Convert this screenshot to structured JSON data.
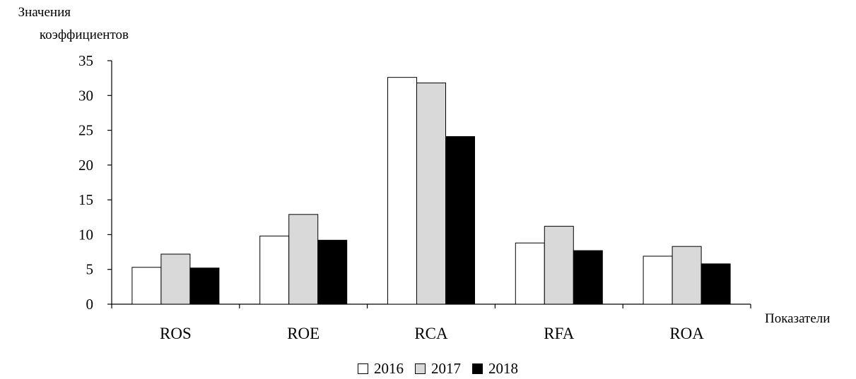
{
  "chart_data": {
    "type": "bar",
    "ylabel_line1": "Значения",
    "ylabel_line2": "коэффициентов",
    "xlabel": "Показатели",
    "categories": [
      "ROS",
      "ROE",
      "RCA",
      "RFA",
      "ROA"
    ],
    "series": [
      {
        "name": "2016",
        "color": "#ffffff",
        "values": [
          5.3,
          9.8,
          32.6,
          8.8,
          6.9
        ]
      },
      {
        "name": "2017",
        "color": "#d9d9d9",
        "values": [
          7.2,
          12.9,
          31.8,
          11.2,
          8.3
        ]
      },
      {
        "name": "2018",
        "color": "#000000",
        "values": [
          5.2,
          9.2,
          24.1,
          7.7,
          5.8
        ]
      }
    ],
    "ylim": [
      0,
      35
    ],
    "yticks": [
      "0",
      "5",
      "10",
      "15",
      "20",
      "25",
      "30",
      "35"
    ],
    "grid": false,
    "legend_position": "bottom"
  }
}
